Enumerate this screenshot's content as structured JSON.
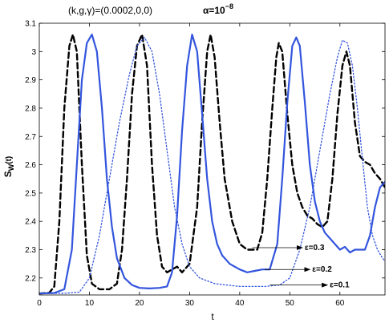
{
  "chart_data": {
    "type": "line",
    "title_left": "(k,g,γ)=(0.0002,0,0)",
    "title_right_base": "α=10",
    "title_right_exp": "−8",
    "xlabel": "t",
    "ylabel_base": "S",
    "ylabel_sub": "W",
    "ylabel_tail": "(t)",
    "xlim": [
      0,
      69
    ],
    "ylim": [
      2.14,
      3.1
    ],
    "x_ticks": [
      0,
      10,
      20,
      30,
      40,
      50,
      60
    ],
    "y_ticks": [
      2.2,
      2.3,
      2.4,
      2.5,
      2.6,
      2.7,
      2.8,
      2.9,
      3.0,
      3.1
    ],
    "y_tick_labels": [
      "2.2",
      "2.3",
      "2.4",
      "2.5",
      "2.6",
      "2.7",
      "2.8",
      "2.9",
      "3",
      "3.1"
    ],
    "grid": false,
    "series": [
      {
        "name": "ε=0.3",
        "color": "#000000",
        "style": "dashed",
        "points": [
          [
            0,
            2.145
          ],
          [
            2,
            2.148
          ],
          [
            3,
            2.17
          ],
          [
            4,
            2.4
          ],
          [
            5,
            2.8
          ],
          [
            6,
            3.02
          ],
          [
            6.7,
            3.06
          ],
          [
            7.5,
            3.0
          ],
          [
            8.5,
            2.6
          ],
          [
            9.5,
            2.28
          ],
          [
            10.5,
            2.18
          ],
          [
            12,
            2.16
          ],
          [
            14,
            2.16
          ],
          [
            15.5,
            2.18
          ],
          [
            16.5,
            2.3
          ],
          [
            17.5,
            2.55
          ],
          [
            18.5,
            2.85
          ],
          [
            19.5,
            3.02
          ],
          [
            20.5,
            3.06
          ],
          [
            21.5,
            2.95
          ],
          [
            22.5,
            2.6
          ],
          [
            23.5,
            2.35
          ],
          [
            24.5,
            2.24
          ],
          [
            25.5,
            2.22
          ],
          [
            26.5,
            2.23
          ],
          [
            27.5,
            2.24
          ],
          [
            28.5,
            2.22
          ],
          [
            30,
            2.25
          ],
          [
            31.5,
            2.45
          ],
          [
            32.5,
            2.75
          ],
          [
            33.5,
            3.0
          ],
          [
            34.2,
            3.06
          ],
          [
            35,
            2.98
          ],
          [
            36,
            2.75
          ],
          [
            37,
            2.55
          ],
          [
            38.5,
            2.4
          ],
          [
            40,
            2.32
          ],
          [
            41.5,
            2.3
          ],
          [
            42.5,
            2.3
          ],
          [
            43.5,
            2.3
          ],
          [
            44.5,
            2.36
          ],
          [
            45.5,
            2.55
          ],
          [
            46.5,
            2.8
          ],
          [
            47.3,
            2.98
          ],
          [
            47.8,
            3.03
          ],
          [
            48.5,
            3.0
          ],
          [
            49.5,
            2.78
          ],
          [
            50.5,
            2.6
          ],
          [
            51.5,
            2.5
          ],
          [
            52.5,
            2.45
          ],
          [
            53.5,
            2.42
          ],
          [
            54.5,
            2.41
          ],
          [
            55.5,
            2.39
          ],
          [
            56.5,
            2.38
          ],
          [
            57.5,
            2.4
          ],
          [
            58.5,
            2.55
          ],
          [
            59.5,
            2.78
          ],
          [
            60.5,
            2.95
          ],
          [
            61.3,
            3.0
          ],
          [
            62,
            2.95
          ],
          [
            63,
            2.75
          ],
          [
            64,
            2.63
          ],
          [
            65,
            2.61
          ],
          [
            66,
            2.6
          ],
          [
            67,
            2.57
          ],
          [
            68,
            2.55
          ],
          [
            69,
            2.52
          ]
        ]
      },
      {
        "name": "ε=0.2",
        "color": "#3355dd",
        "style": "solid",
        "points": [
          [
            0,
            2.145
          ],
          [
            3,
            2.147
          ],
          [
            5,
            2.16
          ],
          [
            6.5,
            2.3
          ],
          [
            7.5,
            2.6
          ],
          [
            8.5,
            2.9
          ],
          [
            9.5,
            3.03
          ],
          [
            10.5,
            3.06
          ],
          [
            11.5,
            3.0
          ],
          [
            12.5,
            2.8
          ],
          [
            13.5,
            2.55
          ],
          [
            14.5,
            2.38
          ],
          [
            15.5,
            2.27
          ],
          [
            17,
            2.2
          ],
          [
            18.5,
            2.175
          ],
          [
            20,
            2.165
          ],
          [
            22,
            2.163
          ],
          [
            24,
            2.165
          ],
          [
            25.5,
            2.17
          ],
          [
            26.5,
            2.22
          ],
          [
            27.5,
            2.42
          ],
          [
            28.5,
            2.72
          ],
          [
            29.5,
            2.95
          ],
          [
            30.5,
            3.06
          ],
          [
            31.5,
            3.0
          ],
          [
            32.5,
            2.78
          ],
          [
            33.5,
            2.55
          ],
          [
            34.5,
            2.4
          ],
          [
            35.5,
            2.32
          ],
          [
            36.5,
            2.28
          ],
          [
            38,
            2.25
          ],
          [
            40,
            2.23
          ],
          [
            41.5,
            2.22
          ],
          [
            43,
            2.225
          ],
          [
            44.5,
            2.23
          ],
          [
            46,
            2.23
          ],
          [
            47.5,
            2.32
          ],
          [
            48.5,
            2.55
          ],
          [
            49.5,
            2.82
          ],
          [
            50.5,
            3.02
          ],
          [
            51.3,
            3.05
          ],
          [
            52,
            3.02
          ],
          [
            53,
            2.82
          ],
          [
            54,
            2.6
          ],
          [
            55,
            2.47
          ],
          [
            56,
            2.4
          ],
          [
            57,
            2.36
          ],
          [
            58,
            2.34
          ],
          [
            59,
            2.32
          ],
          [
            60,
            2.3
          ],
          [
            61,
            2.31
          ],
          [
            62,
            2.29
          ],
          [
            63,
            2.3
          ],
          [
            64,
            2.3
          ],
          [
            65,
            2.3
          ],
          [
            66,
            2.35
          ],
          [
            67,
            2.45
          ],
          [
            68,
            2.52
          ],
          [
            69,
            2.54
          ]
        ]
      },
      {
        "name": "ε=0.1",
        "color": "#3355dd",
        "style": "dotted",
        "points": [
          [
            0,
            2.145
          ],
          [
            5,
            2.146
          ],
          [
            8,
            2.15
          ],
          [
            10,
            2.2
          ],
          [
            12,
            2.35
          ],
          [
            14,
            2.55
          ],
          [
            16,
            2.75
          ],
          [
            18,
            2.92
          ],
          [
            19.5,
            3.02
          ],
          [
            21,
            3.05
          ],
          [
            22.5,
            3.0
          ],
          [
            24,
            2.85
          ],
          [
            25.5,
            2.65
          ],
          [
            27,
            2.45
          ],
          [
            28.5,
            2.32
          ],
          [
            30,
            2.24
          ],
          [
            32,
            2.2
          ],
          [
            35,
            2.18
          ],
          [
            40,
            2.17
          ],
          [
            45,
            2.17
          ],
          [
            48,
            2.175
          ],
          [
            50,
            2.2
          ],
          [
            52,
            2.3
          ],
          [
            54,
            2.45
          ],
          [
            56,
            2.65
          ],
          [
            58,
            2.85
          ],
          [
            59.5,
            2.98
          ],
          [
            60.5,
            3.04
          ],
          [
            61.5,
            3.03
          ],
          [
            62.5,
            2.95
          ],
          [
            63.5,
            2.8
          ],
          [
            64.5,
            2.62
          ],
          [
            65.5,
            2.45
          ],
          [
            66.5,
            2.35
          ],
          [
            67.5,
            2.3
          ],
          [
            68.5,
            2.27
          ],
          [
            69,
            2.26
          ]
        ]
      }
    ],
    "annotations": [
      {
        "text": "ε=0.3",
        "from": [
          42.5,
          2.307
        ],
        "to": [
          52.5,
          2.307
        ]
      },
      {
        "text": "ε=0.2",
        "from": [
          45,
          2.23
        ],
        "to": [
          54,
          2.23
        ]
      },
      {
        "text": "ε=0.1",
        "from": [
          46,
          2.175
        ],
        "to": [
          57.5,
          2.175
        ]
      }
    ]
  }
}
